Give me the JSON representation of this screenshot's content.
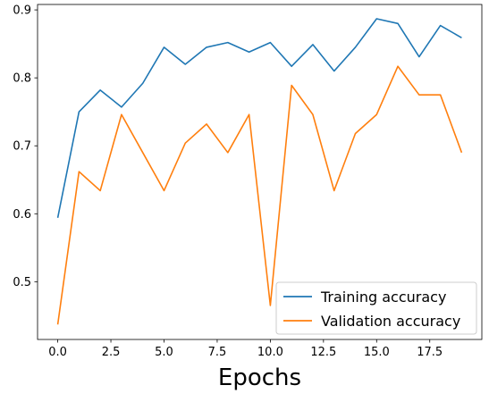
{
  "chart_data": {
    "type": "line",
    "title": "",
    "xlabel": "Epochs",
    "ylabel": "",
    "xlim": [
      -0.95,
      19.95
    ],
    "ylim": [
      0.415,
      0.908
    ],
    "xticks": [
      0.0,
      2.5,
      5.0,
      7.5,
      10.0,
      12.5,
      15.0,
      17.5
    ],
    "xtick_labels": [
      "0.0",
      "2.5",
      "5.0",
      "7.5",
      "10.0",
      "12.5",
      "15.0",
      "17.5"
    ],
    "yticks": [
      0.5,
      0.6,
      0.7,
      0.8,
      0.9
    ],
    "ytick_labels": [
      "0.5",
      "0.6",
      "0.7",
      "0.8",
      "0.9"
    ],
    "grid": false,
    "legend_position": "bottom-right",
    "x": [
      0,
      1,
      2,
      3,
      4,
      5,
      6,
      7,
      8,
      9,
      10,
      11,
      12,
      13,
      14,
      15,
      16,
      17,
      18,
      19
    ],
    "series": [
      {
        "name": "Training accuracy",
        "color": "#1f77b4",
        "values": [
          0.594,
          0.75,
          0.782,
          0.757,
          0.792,
          0.845,
          0.82,
          0.845,
          0.852,
          0.838,
          0.852,
          0.817,
          0.849,
          0.81,
          0.845,
          0.887,
          0.88,
          0.831,
          0.877,
          0.859
        ]
      },
      {
        "name": "Validation accuracy",
        "color": "#ff7f0e",
        "values": [
          0.437,
          0.662,
          0.634,
          0.746,
          0.69,
          0.634,
          0.704,
          0.732,
          0.69,
          0.746,
          0.465,
          0.789,
          0.746,
          0.634,
          0.718,
          0.746,
          0.817,
          0.775,
          0.775,
          0.69
        ]
      }
    ]
  }
}
